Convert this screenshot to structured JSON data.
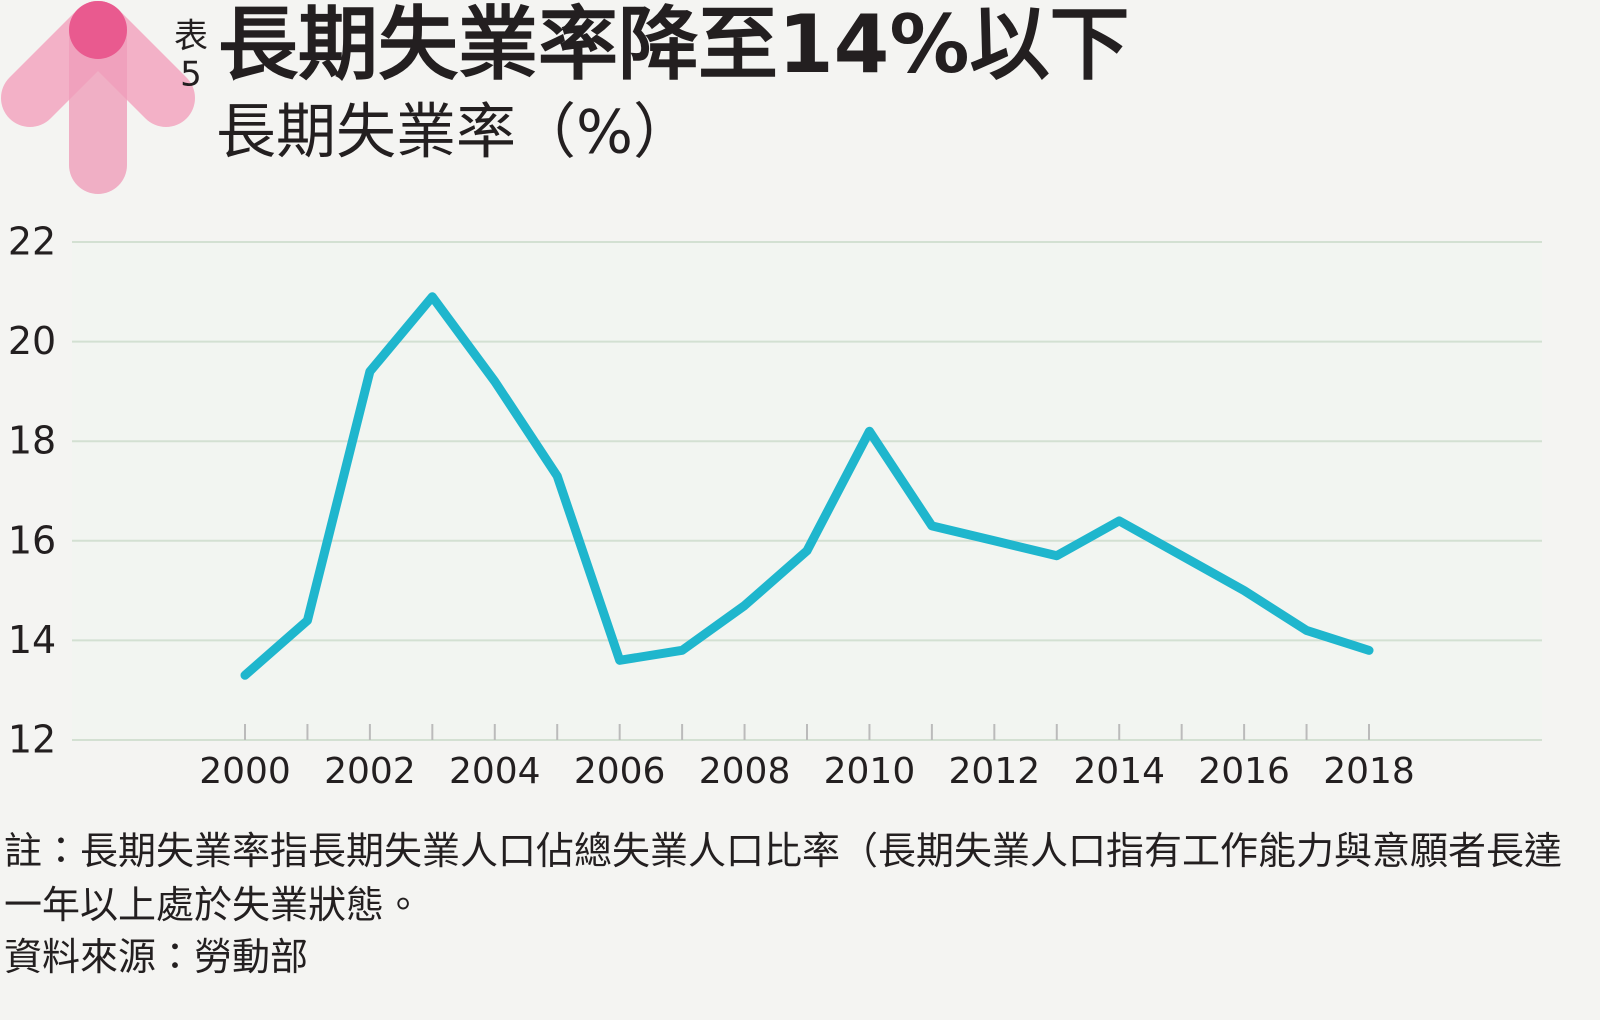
{
  "chart_data": {
    "type": "line",
    "figure_label": [
      "表",
      "5"
    ],
    "title": "長期失業率降至14%以下",
    "subtitle": "長期失業率（%）",
    "categories": [
      "2000",
      null,
      "2002",
      null,
      "2004",
      null,
      "2006",
      null,
      "2008",
      null,
      "2010",
      null,
      "2012",
      null,
      "2014",
      null,
      "2016",
      null,
      "2018"
    ],
    "values": [
      13.3,
      14.4,
      19.4,
      20.9,
      19.2,
      17.3,
      13.6,
      13.8,
      14.7,
      15.8,
      18.2,
      16.3,
      16.0,
      15.7,
      16.4,
      15.7,
      15.0,
      14.2,
      13.8
    ],
    "color": "#1fb6cd",
    "ylim": [
      12,
      22
    ],
    "yticks": [
      12,
      14,
      16,
      18,
      20,
      22
    ],
    "grid": true,
    "note": "註：長期失業率指長期失業人口佔總失業人口比率（長期失業人口指有工作能力與意願者長達一年以上處於失業狀態。",
    "source": "資料來源：勞動部"
  }
}
